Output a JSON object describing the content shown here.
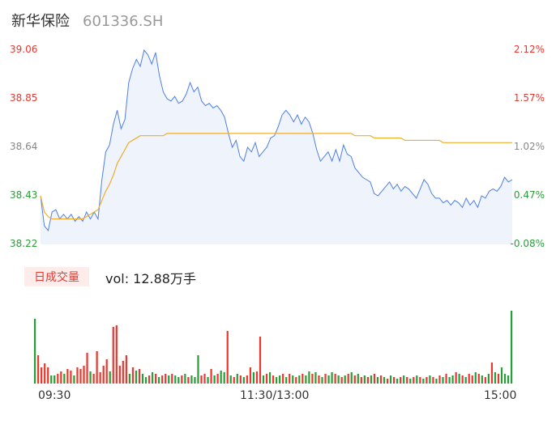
{
  "header": {
    "name": "新华保险",
    "code": "601336.SH"
  },
  "colors": {
    "up": "#e8382f",
    "down": "#2a9d3a",
    "neutral": "#888888",
    "price_line": "#4d7fe8",
    "avg_line": "#f0ad2b",
    "fill": "#eef3fc",
    "vol_tag_bg": "#fdecea"
  },
  "volume_panel": {
    "tag": "日成交量",
    "vol_text": "vol: 12.88万手"
  },
  "chart_data": [
    {
      "type": "line",
      "title": "",
      "series": [
        {
          "name": "price",
          "values": [
            38.43,
            38.3,
            38.28,
            38.36,
            38.37,
            38.33,
            38.35,
            38.33,
            38.35,
            38.32,
            38.34,
            38.32,
            38.36,
            38.33,
            38.36,
            38.33,
            38.5,
            38.62,
            38.65,
            38.74,
            38.8,
            38.72,
            38.76,
            38.92,
            38.98,
            39.02,
            38.99,
            39.06,
            39.04,
            39.0,
            39.05,
            38.95,
            38.88,
            38.85,
            38.84,
            38.86,
            38.83,
            38.84,
            38.87,
            38.92,
            38.88,
            38.9,
            38.84,
            38.82,
            38.83,
            38.81,
            38.82,
            38.8,
            38.77,
            38.7,
            38.64,
            38.67,
            38.6,
            38.58,
            38.64,
            38.62,
            38.66,
            38.6,
            38.62,
            38.64,
            38.68,
            38.69,
            38.73,
            38.78,
            38.8,
            38.78,
            38.75,
            38.78,
            38.74,
            38.77,
            38.75,
            38.7,
            38.63,
            38.58,
            38.6,
            38.62,
            38.58,
            38.63,
            38.58,
            38.65,
            38.61,
            38.6,
            38.55,
            38.53,
            38.51,
            38.5,
            38.49,
            38.44,
            38.43,
            38.45,
            38.47,
            38.49,
            38.46,
            38.48,
            38.45,
            38.47,
            38.46,
            38.44,
            38.42,
            38.46,
            38.5,
            38.48,
            38.44,
            38.42,
            38.42,
            38.4,
            38.41,
            38.39,
            38.41,
            38.4,
            38.38,
            38.42,
            38.39,
            38.41,
            38.38,
            38.43,
            38.42,
            38.45,
            38.46,
            38.45,
            38.47,
            38.51,
            38.49,
            38.5
          ]
        },
        {
          "name": "avg",
          "values": [
            38.43,
            38.36,
            38.34,
            38.33,
            38.33,
            38.33,
            38.33,
            38.33,
            38.33,
            38.33,
            38.33,
            38.33,
            38.34,
            38.35,
            38.36,
            38.37,
            38.41,
            38.45,
            38.48,
            38.52,
            38.57,
            38.6,
            38.63,
            38.66,
            38.67,
            38.68,
            38.69,
            38.69,
            38.69,
            38.69,
            38.69,
            38.69,
            38.69,
            38.7,
            38.7,
            38.7,
            38.7,
            38.7,
            38.7,
            38.7,
            38.7,
            38.7,
            38.7,
            38.7,
            38.7,
            38.7,
            38.7,
            38.7,
            38.7,
            38.7,
            38.7,
            38.7,
            38.7,
            38.7,
            38.7,
            38.7,
            38.7,
            38.7,
            38.7,
            38.7,
            38.7,
            38.7,
            38.7,
            38.7,
            38.7,
            38.7,
            38.7,
            38.7,
            38.7,
            38.7,
            38.7,
            38.7,
            38.7,
            38.7,
            38.7,
            38.7,
            38.7,
            38.7,
            38.7,
            38.7,
            38.7,
            38.7,
            38.69,
            38.69,
            38.69,
            38.69,
            38.69,
            38.68,
            38.68,
            38.68,
            38.68,
            38.68,
            38.68,
            38.68,
            38.68,
            38.67,
            38.67,
            38.67,
            38.67,
            38.67,
            38.67,
            38.67,
            38.67,
            38.67,
            38.67,
            38.66,
            38.66,
            38.66,
            38.66,
            38.66,
            38.66,
            38.66,
            38.66,
            38.66,
            38.66,
            38.66,
            38.66,
            38.66,
            38.66,
            38.66,
            38.66,
            38.66,
            38.66,
            38.66
          ]
        }
      ],
      "yticks": [
        "39.06",
        "38.85",
        "38.64",
        "38.43",
        "38.22"
      ],
      "y2ticks": [
        "2.12%",
        "1.57%",
        "1.02%",
        "0.47%",
        "-0.08%"
      ],
      "ylim": [
        38.22,
        39.06
      ],
      "y2lim": [
        -0.08,
        2.12
      ],
      "grid": false
    },
    {
      "type": "bar",
      "series": [
        {
          "name": "volume",
          "values": [
            80,
            35,
            20,
            25,
            20,
            10,
            10,
            12,
            15,
            12,
            18,
            16,
            10,
            20,
            18,
            22,
            38,
            15,
            12,
            40,
            14,
            22,
            30,
            15,
            70,
            72,
            22,
            28,
            35,
            12,
            20,
            16,
            18,
            12,
            8,
            10,
            14,
            12,
            8,
            10,
            12,
            10,
            12,
            10,
            8,
            10,
            12,
            8,
            10,
            8,
            35,
            10,
            12,
            8,
            18,
            10,
            12,
            16,
            14,
            65,
            10,
            8,
            12,
            10,
            8,
            10,
            20,
            14,
            15,
            58,
            10,
            12,
            14,
            10,
            8,
            10,
            12,
            8,
            12,
            10,
            8,
            10,
            12,
            10,
            15,
            12,
            14,
            10,
            8,
            12,
            10,
            14,
            12,
            10,
            8,
            10,
            12,
            14,
            10,
            12,
            8,
            10,
            8,
            10,
            12,
            8,
            10,
            8,
            6,
            10,
            8,
            6,
            8,
            10,
            8,
            6,
            8,
            10,
            8,
            6,
            8,
            10,
            8,
            6,
            10,
            8,
            12,
            8,
            10,
            14,
            12,
            10,
            8,
            12,
            10,
            14,
            12,
            10,
            8,
            12,
            26,
            14,
            12,
            20,
            12,
            10,
            90
          ],
          "colors": [
            "down",
            "up",
            "up",
            "up",
            "up",
            "down",
            "down",
            "up",
            "up",
            "down",
            "up",
            "up",
            "down",
            "up",
            "up",
            "up",
            "up",
            "down",
            "up",
            "up",
            "up",
            "up",
            "up",
            "down",
            "up",
            "up",
            "up",
            "up",
            "up",
            "down",
            "up",
            "down",
            "up",
            "down",
            "down",
            "up",
            "down",
            "up",
            "down",
            "up",
            "up",
            "down",
            "up",
            "down",
            "down",
            "up",
            "down",
            "up",
            "down",
            "down",
            "down",
            "up",
            "up",
            "down",
            "up",
            "down",
            "up",
            "down",
            "down",
            "up",
            "down",
            "up",
            "down",
            "up",
            "down",
            "up",
            "up",
            "down",
            "up",
            "up",
            "down",
            "up",
            "down",
            "up",
            "down",
            "down",
            "up",
            "down",
            "up",
            "down",
            "up",
            "down",
            "up",
            "down",
            "down",
            "up",
            "down",
            "up",
            "down",
            "up",
            "down",
            "down",
            "up",
            "down",
            "up",
            "down",
            "up",
            "down",
            "up",
            "down",
            "up",
            "down",
            "up",
            "down",
            "up",
            "down",
            "up",
            "down",
            "up",
            "down",
            "up",
            "down",
            "up",
            "down",
            "up",
            "down",
            "up",
            "down",
            "up",
            "down",
            "up",
            "down",
            "up",
            "down",
            "up",
            "down",
            "up",
            "down",
            "down",
            "up",
            "down",
            "up",
            "down",
            "up",
            "up",
            "down",
            "up",
            "down",
            "up",
            "down",
            "up",
            "down",
            "up",
            "down",
            "down",
            "down",
            "down",
            "up",
            "up",
            "down"
          ]
        }
      ]
    }
  ],
  "xticks": [
    "09:30",
    "11:30/13:00",
    "15:00"
  ]
}
